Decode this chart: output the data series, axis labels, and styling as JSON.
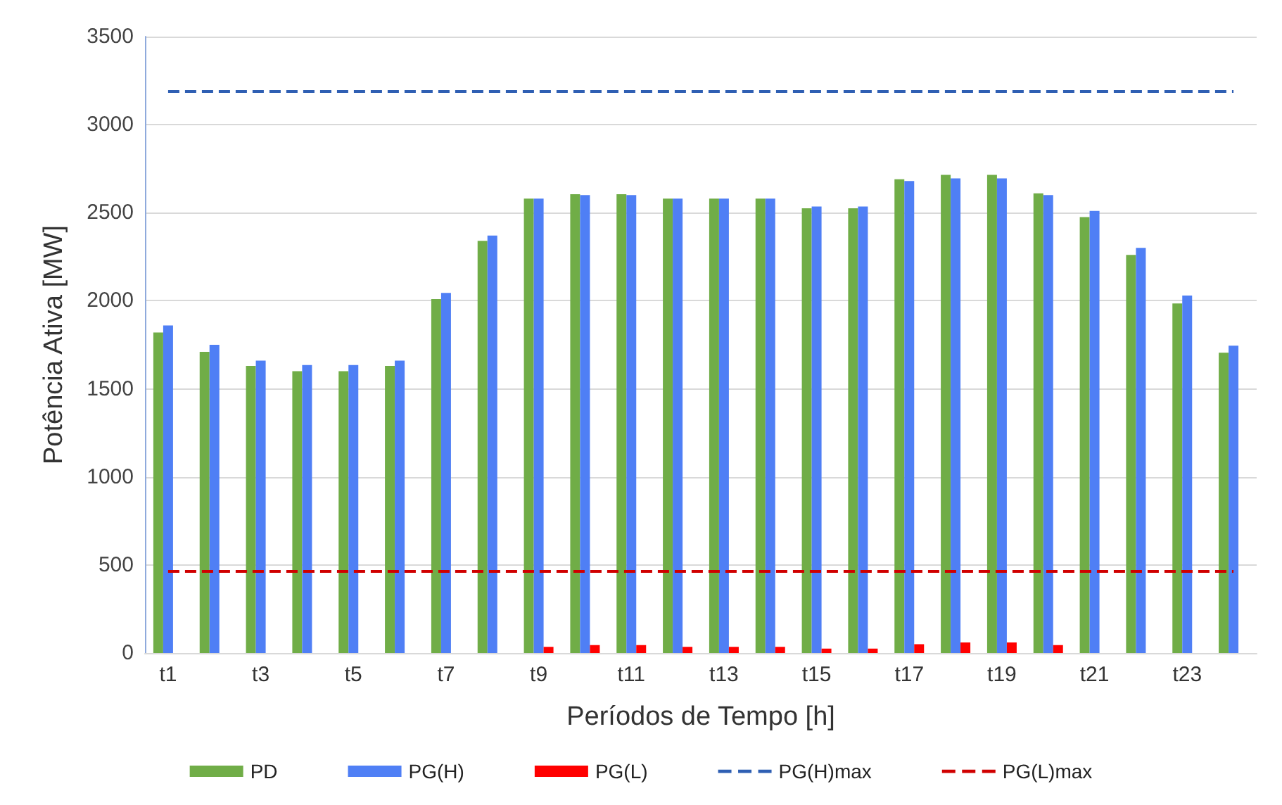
{
  "chart_data": {
    "type": "bar",
    "xlabel": "Períodos de Tempo [h]",
    "ylabel": "Potência Ativa [MW]",
    "categories": [
      "t1",
      null,
      "t3",
      null,
      "t5",
      null,
      "t7",
      null,
      "t9",
      null,
      "t11",
      null,
      "t13",
      null,
      "t15",
      null,
      "t17",
      null,
      "t19",
      null,
      "t21",
      null,
      "t23",
      null
    ],
    "series": [
      {
        "name": "PD",
        "color": "#70ad47",
        "values": [
          1820,
          1710,
          1630,
          1600,
          1600,
          1630,
          2010,
          2340,
          2580,
          2605,
          2605,
          2580,
          2580,
          2580,
          2525,
          2525,
          2690,
          2715,
          2715,
          2610,
          2475,
          2260,
          1985,
          1705
        ]
      },
      {
        "name": "PG(H)",
        "color": "#4f7ff5",
        "values": [
          1860,
          1750,
          1660,
          1635,
          1635,
          1660,
          2045,
          2370,
          2580,
          2600,
          2600,
          2580,
          2580,
          2580,
          2535,
          2535,
          2680,
          2695,
          2695,
          2600,
          2510,
          2300,
          2030,
          1745
        ]
      },
      {
        "name": "PG(L)",
        "color": "#ff0000",
        "values": [
          0,
          0,
          0,
          0,
          0,
          0,
          0,
          0,
          35,
          45,
          45,
          35,
          35,
          35,
          25,
          25,
          50,
          60,
          60,
          45,
          0,
          0,
          0,
          0
        ]
      }
    ],
    "ref_lines": [
      {
        "axis": "y",
        "value": 3190,
        "label": "PG(H)max",
        "color": "#2f5fb3",
        "line_style": "dashed"
      },
      {
        "axis": "y",
        "value": 465,
        "label": "PG(L)max",
        "color": "#d00000",
        "line_style": "dashed"
      }
    ],
    "ylim": [
      0,
      3500
    ],
    "yticks": [
      0,
      500,
      1000,
      1500,
      2000,
      2500,
      3000,
      3500
    ],
    "grid": "y",
    "legend": "bottom"
  }
}
